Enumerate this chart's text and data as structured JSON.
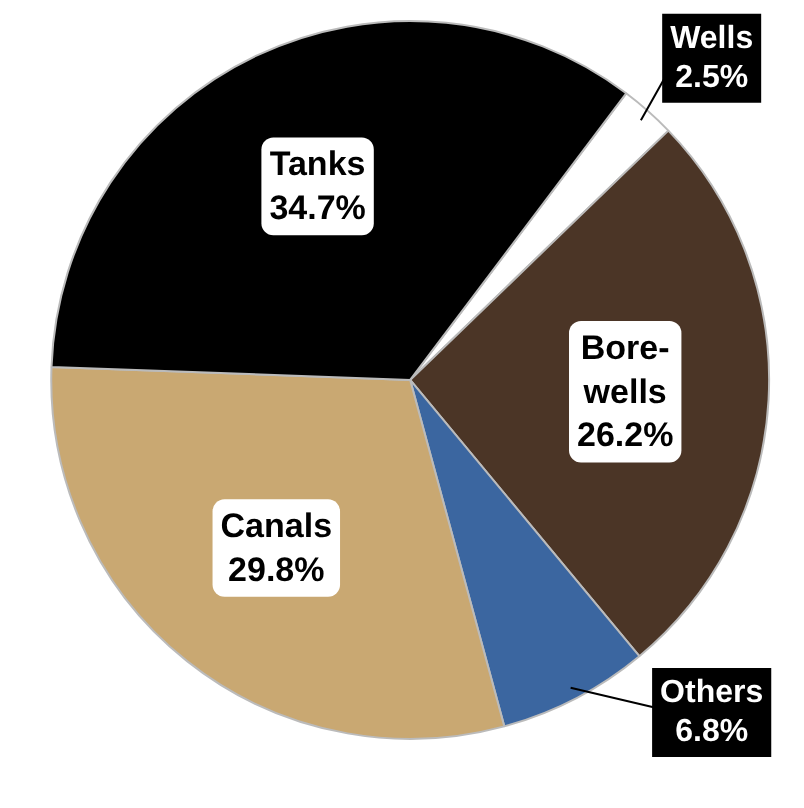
{
  "chart_data": {
    "type": "pie",
    "categories": [
      "Wells",
      "Bore-wells",
      "Others",
      "Canals",
      "Tanks"
    ],
    "values": [
      2.5,
      26.2,
      6.8,
      29.8,
      34.7
    ],
    "colors": [
      "#ffffff",
      "#4b3526",
      "#3b66a0",
      "#c9a872",
      "#000000"
    ],
    "value_labels": [
      "2.5%",
      "26.2%",
      "6.8%",
      "29.8%",
      "34.7%"
    ]
  }
}
